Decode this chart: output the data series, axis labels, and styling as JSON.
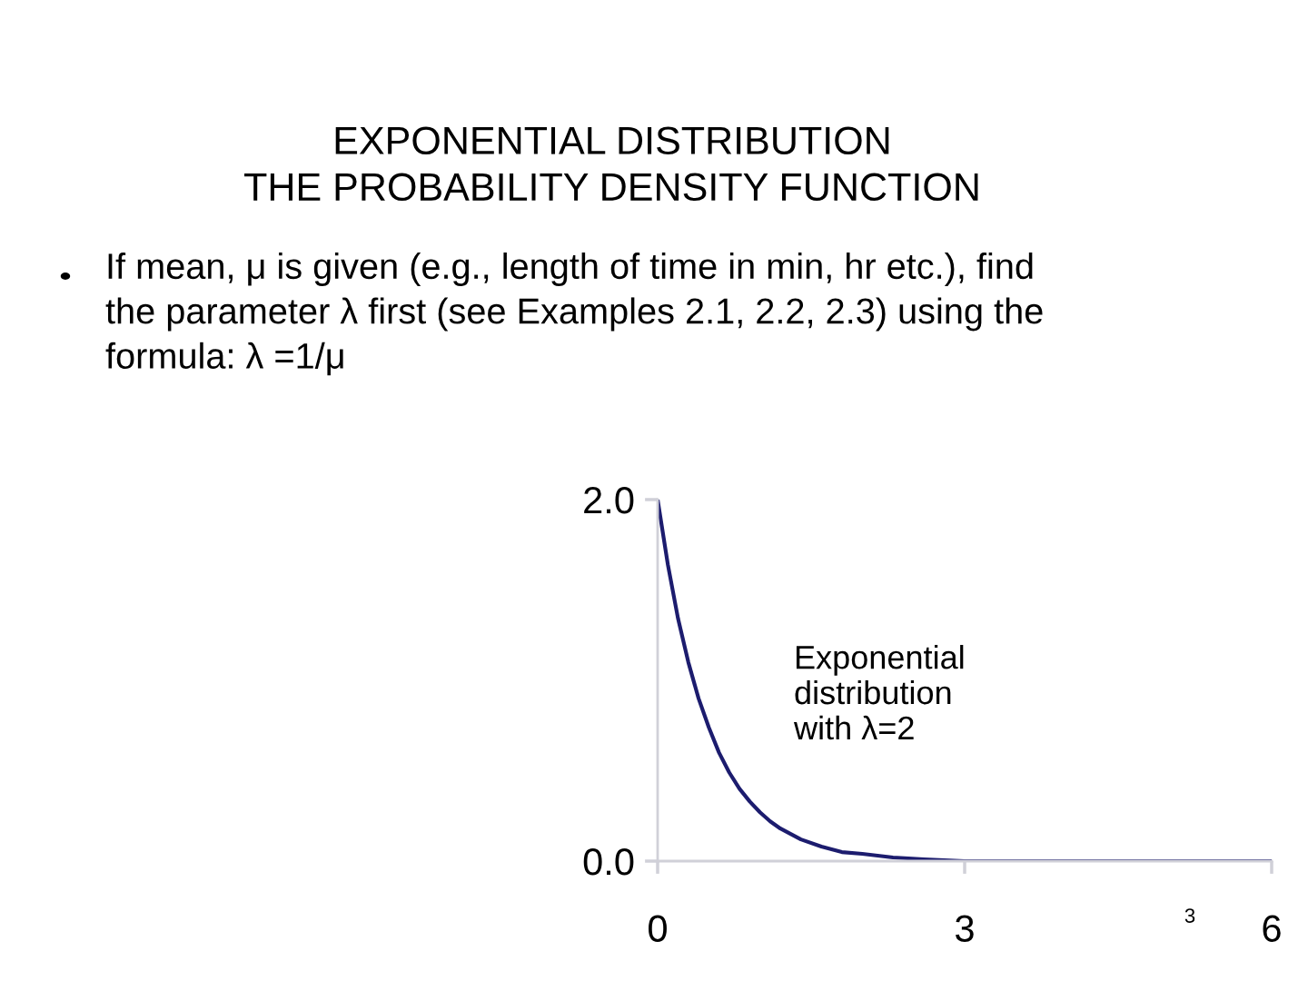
{
  "chart_data": {
    "type": "line",
    "title": "EXPONENTIAL DISTRIBUTION\nTHE PROBABILITY DENSITY FUNCTION",
    "subtitle": "If mean, μ is given (e.g., length of time in min, hr etc.), find\nthe parameter λ first (see Examples 2.1, 2.2, 2.3) using the\nformula: λ =1/μ",
    "annotations": [
      "Exponential\ndistribution\nwith λ=2",
      "3"
    ],
    "x": [
      0,
      0.1,
      0.2,
      0.3,
      0.4,
      0.5,
      0.6,
      0.7,
      0.8,
      0.9,
      1.0,
      1.1,
      1.2,
      1.3,
      1.4,
      1.6,
      1.8,
      2.0,
      2.3,
      2.6,
      3.0,
      3.5,
      4.0,
      5.0,
      6.0
    ],
    "series": [
      {
        "color": "#1c1c6e",
        "values": [
          2.0,
          1.64,
          1.34,
          1.1,
          0.9,
          0.74,
          0.6,
          0.49,
          0.4,
          0.33,
          0.27,
          0.22,
          0.18,
          0.15,
          0.12,
          0.08,
          0.05,
          0.04,
          0.02,
          0.01,
          0.0,
          0.0,
          0.0,
          0.0,
          0.0
        ]
      }
    ],
    "xlim": [
      0,
      6
    ],
    "ylim": [
      0,
      2
    ],
    "xticks": [
      0,
      3,
      6
    ],
    "yticks": [
      {
        "value": 0,
        "label": "0.0"
      },
      {
        "value": 2,
        "label": "2.0"
      }
    ],
    "line_style": "solid"
  }
}
